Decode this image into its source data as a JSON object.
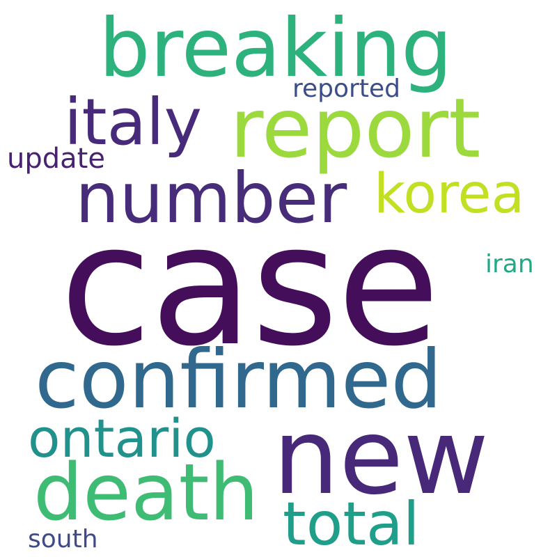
{
  "words": {
    "case": {
      "text": "case",
      "color": "#440e5b"
    },
    "breaking": {
      "text": "breaking",
      "color": "#2db27d"
    },
    "report": {
      "text": "report",
      "color": "#9bd93c"
    },
    "italy": {
      "text": "italy",
      "color": "#472a7a"
    },
    "number": {
      "text": "number",
      "color": "#472c7a"
    },
    "korea": {
      "text": "korea",
      "color": "#c2df23"
    },
    "reported": {
      "text": "reported",
      "color": "#3b4d8a"
    },
    "update": {
      "text": "update",
      "color": "#482173"
    },
    "iran": {
      "text": "iran",
      "color": "#22a884"
    },
    "confirmed": {
      "text": "confirmed",
      "color": "#31688e"
    },
    "ontario": {
      "text": "ontario",
      "color": "#21918c"
    },
    "new": {
      "text": "new",
      "color": "#482878"
    },
    "death": {
      "text": "death",
      "color": "#3fbc73"
    },
    "total": {
      "text": "total",
      "color": "#1f9e89"
    },
    "south": {
      "text": "south",
      "color": "#3e4a89"
    }
  }
}
